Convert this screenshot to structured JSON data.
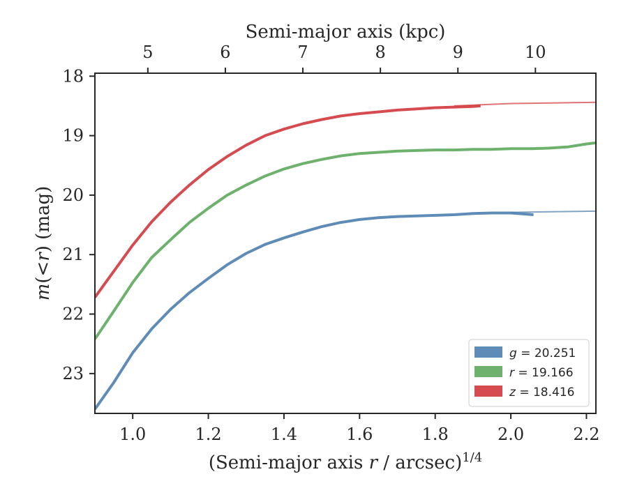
{
  "chart_data": {
    "type": "line",
    "top_axis": {
      "label": "Semi-major axis (kpc)",
      "ticks": [
        {
          "label": "5",
          "x_equiv": 1.04
        },
        {
          "label": "6",
          "x_equiv": 1.245
        },
        {
          "label": "7",
          "x_equiv": 1.45
        },
        {
          "label": "8",
          "x_equiv": 1.655
        },
        {
          "label": "9",
          "x_equiv": 1.86
        },
        {
          "label": "10",
          "x_equiv": 2.065
        }
      ]
    },
    "xlabel": "(Semi-major axis r / arcsec)^1/4",
    "ylabel": "m(<r) (mag)",
    "xlim": [
      0.9,
      2.225
    ],
    "ylim": [
      23.67,
      17.95
    ],
    "y_inverted": true,
    "x_ticks": [
      "1.0",
      "1.2",
      "1.4",
      "1.6",
      "1.8",
      "2.0",
      "2.2"
    ],
    "y_ticks": [
      "18",
      "19",
      "20",
      "21",
      "22",
      "23"
    ],
    "legend_position": "lower-right",
    "series": [
      {
        "name": "g = 20.251",
        "color": "#4c7fae",
        "x": [
          0.9,
          0.95,
          1.0,
          1.05,
          1.1,
          1.15,
          1.2,
          1.25,
          1.3,
          1.35,
          1.4,
          1.45,
          1.5,
          1.55,
          1.6,
          1.65,
          1.7,
          1.75,
          1.8,
          1.85,
          1.9,
          1.95,
          2.0,
          2.06
        ],
        "y": [
          23.6,
          23.15,
          22.65,
          22.25,
          21.92,
          21.64,
          21.4,
          21.17,
          20.98,
          20.83,
          20.72,
          20.62,
          20.53,
          20.46,
          20.41,
          20.38,
          20.36,
          20.35,
          20.34,
          20.33,
          20.31,
          20.3,
          20.3,
          20.33
        ],
        "ext_x": [
          2.0,
          2.225
        ],
        "ext_y": [
          20.29,
          20.27
        ]
      },
      {
        "name": "r = 19.166",
        "color": "#5da85c",
        "x": [
          0.9,
          0.95,
          1.0,
          1.05,
          1.1,
          1.15,
          1.2,
          1.25,
          1.3,
          1.35,
          1.4,
          1.45,
          1.5,
          1.55,
          1.6,
          1.65,
          1.7,
          1.75,
          1.8,
          1.85,
          1.9,
          1.95,
          2.0,
          2.05,
          2.1,
          2.15,
          2.2,
          2.225
        ],
        "y": [
          22.42,
          21.95,
          21.47,
          21.05,
          20.75,
          20.46,
          20.22,
          20.0,
          19.83,
          19.68,
          19.56,
          19.47,
          19.4,
          19.34,
          19.3,
          19.28,
          19.26,
          19.25,
          19.24,
          19.24,
          19.23,
          19.23,
          19.22,
          19.22,
          19.21,
          19.19,
          19.14,
          19.12
        ]
      },
      {
        "name": "z = 18.416",
        "color": "#d1373d",
        "x": [
          0.9,
          0.95,
          1.0,
          1.05,
          1.1,
          1.15,
          1.2,
          1.25,
          1.3,
          1.35,
          1.4,
          1.45,
          1.5,
          1.55,
          1.6,
          1.65,
          1.7,
          1.75,
          1.8,
          1.85,
          1.9,
          1.92
        ],
        "y": [
          21.72,
          21.28,
          20.84,
          20.45,
          20.12,
          19.83,
          19.57,
          19.35,
          19.16,
          19.0,
          18.89,
          18.8,
          18.73,
          18.67,
          18.63,
          18.6,
          18.57,
          18.55,
          18.53,
          18.52,
          18.51,
          18.5
        ],
        "ext_x": [
          1.85,
          2.0,
          2.225
        ],
        "ext_y": [
          18.5,
          18.46,
          18.44
        ]
      }
    ]
  }
}
